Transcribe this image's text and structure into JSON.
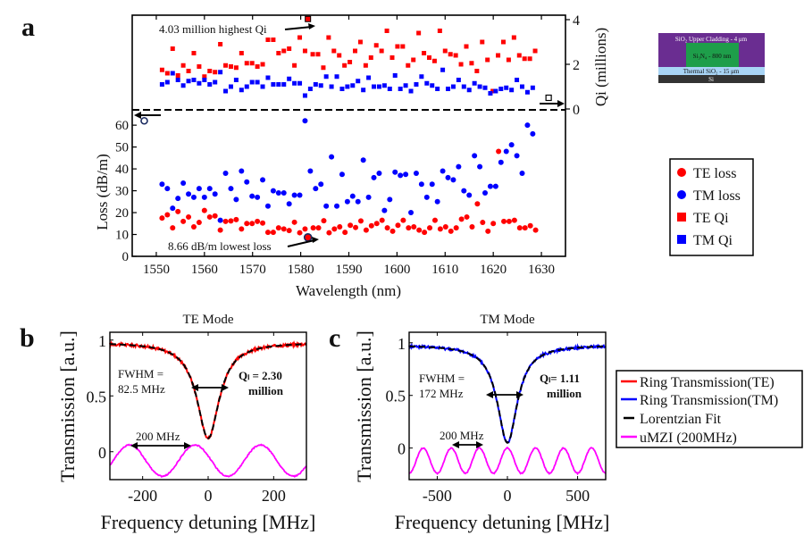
{
  "panel_labels": {
    "a": "a",
    "b": "b",
    "c": "c"
  },
  "cross_section": {
    "layers": [
      {
        "label": "SiO₂ Upper Cladding - 4 μm",
        "color": "#6a2d91"
      },
      {
        "label": "Si₃N₄ - 800 nm",
        "color": "#1e9e4a"
      },
      {
        "label": "Thermal SiO₂ - 15 μm",
        "color": "#a8d4f5"
      },
      {
        "label": "Si",
        "color": "#333333"
      }
    ]
  },
  "chart_data": [
    {
      "id": "panel-a",
      "type": "scatter",
      "xlabel": "Wavelength  (nm)",
      "ylabel_left": "Loss  (dB/m)",
      "ylabel_right": "Qi (millions)",
      "xlim": [
        1545,
        1635
      ],
      "xticks": [
        1550,
        1560,
        1570,
        1580,
        1590,
        1600,
        1610,
        1620,
        1630
      ],
      "loss_ylim": [
        0,
        67
      ],
      "loss_yticks": [
        0,
        10,
        20,
        30,
        40,
        50,
        60
      ],
      "qi_ylim": [
        0,
        4.2
      ],
      "qi_yticks": [
        0,
        2,
        4
      ],
      "annotations": [
        {
          "text": "4.03 million highest Qi",
          "x": 1581.5,
          "y": 4.03,
          "axis": "qi"
        },
        {
          "text": "8.66 dB/m lowest loss",
          "x": 1581.5,
          "y": 8.66,
          "axis": "loss"
        }
      ],
      "legend": {
        "placement": "right",
        "entries": [
          {
            "label": "TE loss",
            "color": "#ff0000",
            "marker": "circle"
          },
          {
            "label": "TM loss",
            "color": "#0000ff",
            "marker": "circle"
          },
          {
            "label": "TE Qi",
            "color": "#ff0000",
            "marker": "square"
          },
          {
            "label": "TM Qi",
            "color": "#0000ff",
            "marker": "square"
          }
        ]
      },
      "series": [
        {
          "name": "TE Qi",
          "color": "#ff0000",
          "marker": "square",
          "axis": "qi",
          "x": [
            1551.2,
            1552.3,
            1553.4,
            1554.5,
            1555.6,
            1556.7,
            1557.8,
            1558.9,
            1560,
            1561.1,
            1562.2,
            1563.3,
            1564.4,
            1565.5,
            1566.6,
            1567.7,
            1568.8,
            1569.9,
            1571,
            1572.1,
            1573.2,
            1574.3,
            1575.4,
            1576.5,
            1577.6,
            1578.7,
            1579.8,
            1580.9,
            1581.5,
            1582.5,
            1583.6,
            1584.7,
            1585.8,
            1586.9,
            1588,
            1589.1,
            1590.2,
            1591.3,
            1592.4,
            1593.5,
            1594.6,
            1595.7,
            1596.8,
            1597.9,
            1599,
            1600.1,
            1601.2,
            1602.3,
            1603.4,
            1604.5,
            1605.6,
            1606.7,
            1607.8,
            1608.9,
            1610,
            1611.1,
            1612.2,
            1613.3,
            1614.4,
            1615.5,
            1616.6,
            1617.7,
            1618.8,
            1619.9,
            1621,
            1622.1,
            1623.2,
            1624.3,
            1625.4,
            1626.5,
            1627.6,
            1628.7
          ],
          "y": [
            1.75,
            1.6,
            2.7,
            1.5,
            1.95,
            1.7,
            2.5,
            1.9,
            1.45,
            1.7,
            1.65,
            2.9,
            1.95,
            1.9,
            1.85,
            2.5,
            2.05,
            2.05,
            1.9,
            2.0,
            3.1,
            3.1,
            2.5,
            2.6,
            2.7,
            1.95,
            3.2,
            2.6,
            4.03,
            2.45,
            2.45,
            1.85,
            3.2,
            2.6,
            2.4,
            1.95,
            2.1,
            2.6,
            3.0,
            1.95,
            2.3,
            2.85,
            2.6,
            3.5,
            2.3,
            2.8,
            2.8,
            1.95,
            2.2,
            3.4,
            2.5,
            2.3,
            2.15,
            3.5,
            2.6,
            2.45,
            2.4,
            2.0,
            2.8,
            2.05,
            1.7,
            3.0,
            2.2,
            0.8,
            2.4,
            3.0,
            2.2,
            3.2,
            2.4,
            2.25,
            2.25,
            2.6
          ]
        },
        {
          "name": "TM Qi",
          "color": "#0000ff",
          "marker": "square",
          "axis": "qi",
          "x": [
            1551.2,
            1552.3,
            1553.4,
            1554.5,
            1555.6,
            1556.7,
            1557.8,
            1558.9,
            1560,
            1561.1,
            1562.2,
            1563.3,
            1564.4,
            1565.5,
            1566.6,
            1567.7,
            1568.8,
            1569.9,
            1571,
            1572.1,
            1573.2,
            1574.3,
            1575.4,
            1576.5,
            1577.6,
            1578.7,
            1579.8,
            1580.9,
            1582,
            1583.1,
            1584.2,
            1585.3,
            1586.4,
            1587.5,
            1588.6,
            1589.7,
            1590.8,
            1591.9,
            1593,
            1594.1,
            1595.2,
            1596.3,
            1597.4,
            1598.5,
            1599.6,
            1600.7,
            1601.8,
            1602.9,
            1604,
            1605.1,
            1606.2,
            1607.3,
            1608.4,
            1609.5,
            1610.6,
            1611.7,
            1612.8,
            1613.9,
            1615,
            1616.1,
            1617.2,
            1618.3,
            1619.4,
            1620.5,
            1621.6,
            1622.7,
            1623.8,
            1624.9,
            1626,
            1627.1,
            1628.2
          ],
          "y": [
            1.1,
            1.2,
            1.6,
            1.3,
            1.05,
            1.25,
            1.3,
            1.15,
            1.3,
            1.1,
            1.2,
            1.65,
            0.8,
            1.0,
            1.3,
            0.85,
            1.0,
            1.2,
            1.2,
            1.0,
            1.4,
            1.1,
            1.1,
            1.1,
            1.35,
            1.15,
            1.15,
            0.6,
            0.9,
            1.1,
            1.05,
            1.45,
            1.0,
            1.45,
            0.9,
            1.0,
            1.05,
            1.25,
            0.85,
            1.4,
            1.0,
            1.0,
            1.05,
            0.9,
            1.5,
            0.9,
            1.05,
            0.8,
            1.1,
            1.45,
            1.15,
            1.05,
            0.9,
            1.75,
            0.9,
            1.0,
            1.3,
            1.0,
            0.85,
            1.15,
            1.0,
            0.95,
            0.7,
            0.8,
            0.9,
            0.95,
            0.85,
            1.3,
            1.0,
            0.75,
            0.95
          ]
        },
        {
          "name": "TE loss",
          "color": "#ff0000",
          "marker": "circle",
          "axis": "loss",
          "x": [
            1551.2,
            1552.3,
            1553.4,
            1554.5,
            1555.6,
            1556.7,
            1557.8,
            1558.9,
            1560,
            1561.1,
            1562.2,
            1563.3,
            1564.4,
            1565.5,
            1566.6,
            1567.7,
            1568.8,
            1569.9,
            1571,
            1572.1,
            1573.2,
            1574.3,
            1575.4,
            1576.5,
            1577.6,
            1578.7,
            1579.8,
            1580.9,
            1581.7,
            1582.6,
            1583.7,
            1584.8,
            1585.9,
            1587,
            1588.1,
            1589.2,
            1590.3,
            1591.4,
            1592.5,
            1593.6,
            1594.7,
            1595.8,
            1596.9,
            1598,
            1599.1,
            1600.2,
            1601.3,
            1602.4,
            1603.5,
            1604.6,
            1605.7,
            1606.8,
            1607.9,
            1609,
            1610.1,
            1611.2,
            1612.3,
            1613.4,
            1614.5,
            1615.6,
            1616.7,
            1617.8,
            1618.9,
            1620,
            1621.1,
            1622.2,
            1623.3,
            1624.4,
            1625.5,
            1626.6,
            1627.7,
            1628.8
          ],
          "y": [
            17.5,
            19,
            13,
            20.5,
            16,
            18,
            13.5,
            15.5,
            21,
            18,
            18.5,
            12,
            16,
            16.2,
            16.8,
            12.5,
            15,
            15,
            16,
            15.2,
            11,
            11,
            13,
            12.5,
            11.8,
            15.6,
            10.8,
            12.5,
            8.66,
            13,
            13,
            16.3,
            10.8,
            12.5,
            13.5,
            11,
            14.2,
            13.2,
            16.2,
            12,
            14,
            15,
            16.5,
            13,
            11.5,
            14.2,
            16.5,
            13,
            13.5,
            12,
            11,
            13,
            16.5,
            12.5,
            13.5,
            11.5,
            13,
            17,
            18,
            13.5,
            24,
            15.5,
            11.5,
            15,
            48,
            16,
            16,
            16.5,
            13,
            13,
            14,
            12
          ]
        },
        {
          "name": "TM loss",
          "color": "#0000ff",
          "marker": "circle",
          "axis": "loss",
          "x": [
            1551.2,
            1552.3,
            1553.4,
            1554.5,
            1555.6,
            1556.7,
            1557.8,
            1558.9,
            1560,
            1561.1,
            1562.2,
            1563.3,
            1564.4,
            1565.5,
            1566.6,
            1567.7,
            1568.8,
            1569.9,
            1571,
            1572.1,
            1573.2,
            1574.3,
            1575.4,
            1576.5,
            1577.6,
            1578.7,
            1579.8,
            1580.9,
            1582,
            1583.1,
            1584.2,
            1585.3,
            1586.4,
            1587.5,
            1588.6,
            1589.7,
            1590.8,
            1591.9,
            1593,
            1594.1,
            1595.2,
            1596.3,
            1597.4,
            1598.5,
            1599.6,
            1600.7,
            1601.8,
            1602.9,
            1604,
            1605.1,
            1606.2,
            1607.3,
            1608.4,
            1609.5,
            1610.6,
            1611.7,
            1612.8,
            1613.9,
            1615,
            1616.1,
            1617.2,
            1618.3,
            1619.4,
            1620.5,
            1621.6,
            1622.7,
            1623.8,
            1624.9,
            1626,
            1627.1,
            1628.2
          ],
          "y": [
            33,
            31,
            22,
            26.5,
            33.5,
            28.5,
            27,
            31,
            27,
            31,
            28.5,
            16.5,
            38,
            31,
            26,
            39,
            34,
            27.5,
            27,
            35,
            23,
            30,
            29,
            29,
            24,
            28,
            28,
            62,
            39,
            31,
            33,
            23,
            45.5,
            23,
            37.5,
            25,
            27.5,
            25,
            44,
            27,
            36,
            38,
            21,
            26,
            38.5,
            37,
            37.5,
            20,
            38,
            33,
            27,
            33,
            25,
            39,
            36,
            35,
            41,
            30,
            28,
            46,
            41,
            29,
            32,
            32,
            43,
            48,
            51,
            46,
            38,
            60,
            56
          ]
        }
      ],
      "open_markers": [
        {
          "note": "TM loss axis indicator",
          "x": 1547.5,
          "y": 62,
          "axis": "loss"
        },
        {
          "note": "Qi axis indicator",
          "x": 1631.5,
          "y": 0.5,
          "axis": "qi"
        }
      ]
    },
    {
      "id": "panel-b",
      "type": "line",
      "title": "TE Mode",
      "xlabel": "Frequency detuning [MHz]",
      "ylabel": "Transmission [a.u.]",
      "xlim": [
        -300,
        300
      ],
      "ylim": [
        -0.25,
        1.07
      ],
      "xticks": [
        -200,
        0,
        200
      ],
      "yticks": [
        0,
        0.5,
        1
      ],
      "yticklabels": [
        "0",
        "0.5",
        "1"
      ],
      "annotations": [
        {
          "text": "FWHM =",
          "line2": "82.5 MHz"
        },
        {
          "text": "Qₗ = 2.30",
          "line2": "million",
          "ql_value": "2.30"
        },
        {
          "text": "200 MHz"
        }
      ],
      "resonance": {
        "center": 0,
        "fwhm": 82.5,
        "min": 0.12,
        "baseline": 0.98
      },
      "mzi": {
        "period": 200,
        "offset": -0.08,
        "amplitude": 0.14,
        "peak_at": -240
      },
      "series": [
        {
          "name": "Ring Transmission(TE)",
          "color": "#ff0000"
        },
        {
          "name": "Lorentzian Fit",
          "color": "#000000",
          "dash": true
        },
        {
          "name": "uMZI (200MHz)",
          "color": "#ff00ff"
        }
      ]
    },
    {
      "id": "panel-c",
      "type": "line",
      "title": "TM Mode",
      "xlabel": "Frequency detuning [MHz]",
      "ylabel": "Transmission [a.u.]",
      "xlim": [
        -700,
        700
      ],
      "ylim": [
        -0.3,
        1.1
      ],
      "xticks": [
        -500,
        0,
        500
      ],
      "yticks": [
        0,
        0.5,
        1
      ],
      "yticklabels": [
        "0",
        "0.5",
        "1"
      ],
      "annotations": [
        {
          "text": "FWHM =",
          "line2": "172 MHz"
        },
        {
          "text": "Qₗ= 1.11",
          "line2": "million",
          "ql_value": "1.11"
        },
        {
          "text": "200 MHz"
        }
      ],
      "resonance": {
        "center": 0,
        "fwhm": 172,
        "min": 0.05,
        "baseline": 0.98
      },
      "mzi": {
        "period": 200,
        "offset": -0.12,
        "amplitude": 0.12,
        "peak_at": -200
      },
      "series": [
        {
          "name": "Ring Transmission(TM)",
          "color": "#0000ff"
        },
        {
          "name": "Lorentzian Fit",
          "color": "#000000",
          "dash": true
        },
        {
          "name": "uMZI (200MHz)",
          "color": "#ff00ff"
        }
      ],
      "legend": {
        "placement": "right",
        "entries": [
          {
            "label": "Ring Transmission(TE)",
            "color": "#ff0000"
          },
          {
            "label": "Ring Transmission(TM)",
            "color": "#0000ff"
          },
          {
            "label": "Lorentzian Fit",
            "color": "#000000"
          },
          {
            "label": "uMZI (200MHz)",
            "color": "#ff00ff"
          }
        ]
      }
    }
  ]
}
